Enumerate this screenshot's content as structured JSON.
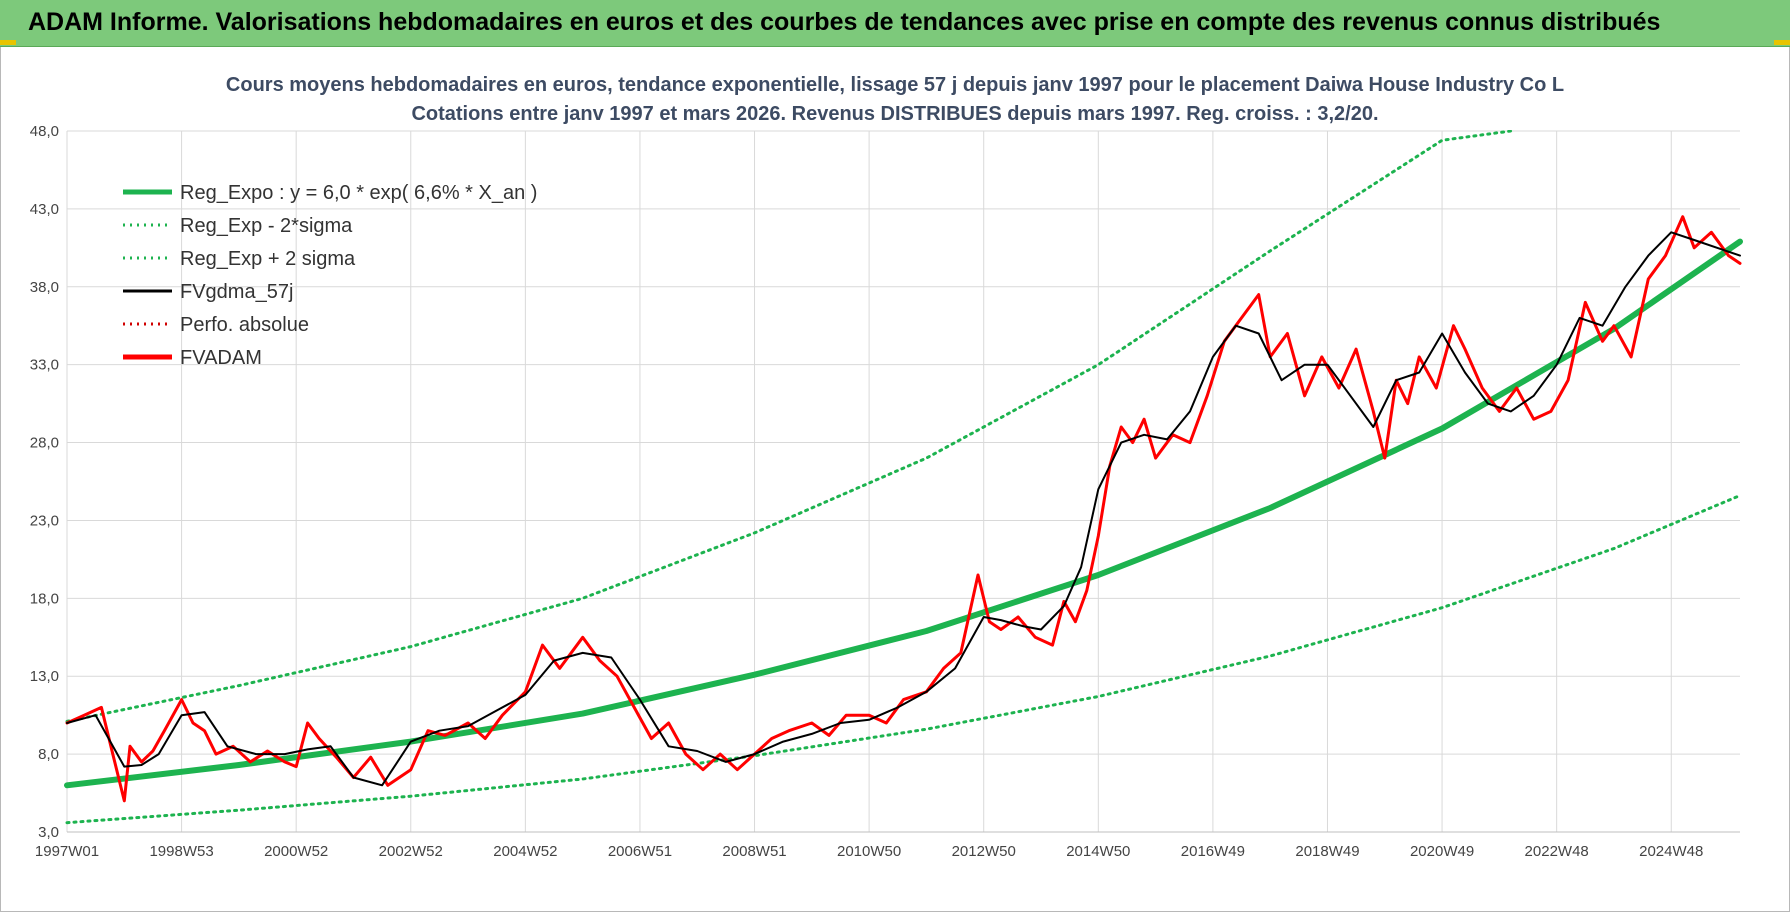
{
  "header": {
    "title": "ADAM Informe. Valorisations hebdomadaires en euros et des courbes de tendances avec prise en compte des revenus connus distribués"
  },
  "chart_data": {
    "type": "line",
    "title": "Cours moyens hebdomadaires en euros, tendance exponentielle, lissage 57 j depuis janv 1997 pour le placement Daiwa House Industry Co L",
    "subtitle": "Cotations entre janv 1997 et mars 2026. Revenus DISTRIBUES depuis mars 1997. Reg. croiss. : 3,2/20.",
    "xlabel": "",
    "ylabel": "",
    "ylim": [
      3.0,
      48.0
    ],
    "yticks": [
      "48,0",
      "43,0",
      "38,0",
      "33,0",
      "28,0",
      "23,0",
      "18,0",
      "13,0",
      "8,0",
      "3,0"
    ],
    "xlim": [
      1997.0,
      2026.2
    ],
    "xticks": [
      {
        "label": "1997W01",
        "x": 1997.0
      },
      {
        "label": "1998W53",
        "x": 1999.0
      },
      {
        "label": "2000W52",
        "x": 2001.0
      },
      {
        "label": "2002W52",
        "x": 2003.0
      },
      {
        "label": "2004W52",
        "x": 2005.0
      },
      {
        "label": "2006W51",
        "x": 2007.0
      },
      {
        "label": "2008W51",
        "x": 2009.0
      },
      {
        "label": "2010W50",
        "x": 2011.0
      },
      {
        "label": "2012W50",
        "x": 2013.0
      },
      {
        "label": "2014W50",
        "x": 2015.0
      },
      {
        "label": "2016W49",
        "x": 2017.0
      },
      {
        "label": "2018W49",
        "x": 2019.0
      },
      {
        "label": "2020W49",
        "x": 2021.0
      },
      {
        "label": "2022W48",
        "x": 2023.0
      },
      {
        "label": "2024W48",
        "x": 2025.0
      }
    ],
    "grid": true,
    "legend_position": "top-left",
    "series": [
      {
        "name": "Reg_Expo : y = 6,0 * exp( 6,6% *  X_an )",
        "color": "#1db34f",
        "style": "solid-thick",
        "x": [
          1997.0,
          2000.0,
          2003.0,
          2006.0,
          2009.0,
          2012.0,
          2015.0,
          2018.0,
          2021.0,
          2024.0,
          2026.2
        ],
        "values": [
          6.0,
          7.3,
          8.8,
          10.6,
          13.1,
          15.9,
          19.5,
          23.8,
          28.9,
          35.3,
          40.9
        ]
      },
      {
        "name": "Reg_Exp - 2*sigma",
        "color": "#1db34f",
        "style": "dotted",
        "x": [
          1997.0,
          2000.0,
          2003.0,
          2006.0,
          2009.0,
          2012.0,
          2015.0,
          2018.0,
          2021.0,
          2024.0,
          2026.2
        ],
        "values": [
          3.6,
          4.4,
          5.3,
          6.4,
          7.9,
          9.6,
          11.7,
          14.3,
          17.4,
          21.2,
          24.6
        ]
      },
      {
        "name": "Reg_Exp + 2 sigma",
        "color": "#1db34f",
        "style": "dotted",
        "x": [
          1997.0,
          2000.0,
          2003.0,
          2006.0,
          2009.0,
          2012.0,
          2015.0,
          2018.0,
          2021.0,
          2022.2
        ],
        "values": [
          10.1,
          12.4,
          14.9,
          18.0,
          22.2,
          27.0,
          33.0,
          40.3,
          47.4,
          48.0
        ]
      },
      {
        "name": "FVgdma_57j",
        "color": "#000000",
        "style": "solid",
        "x": [
          1997.0,
          1997.5,
          1998.0,
          1998.3,
          1998.6,
          1999.0,
          1999.4,
          1999.8,
          2000.3,
          2000.8,
          2001.2,
          2001.6,
          2002.0,
          2002.5,
          2003.0,
          2003.5,
          2004.0,
          2004.5,
          2005.0,
          2005.5,
          2006.0,
          2006.5,
          2007.0,
          2007.5,
          2008.0,
          2008.5,
          2009.0,
          2009.5,
          2010.0,
          2010.5,
          2011.0,
          2011.5,
          2012.0,
          2012.5,
          2013.0,
          2013.3,
          2013.7,
          2014.0,
          2014.4,
          2014.7,
          2015.0,
          2015.4,
          2015.8,
          2016.2,
          2016.6,
          2017.0,
          2017.4,
          2017.8,
          2018.2,
          2018.6,
          2019.0,
          2019.4,
          2019.8,
          2020.2,
          2020.6,
          2021.0,
          2021.4,
          2021.8,
          2022.2,
          2022.6,
          2023.0,
          2023.4,
          2023.8,
          2024.2,
          2024.6,
          2025.0,
          2025.4,
          2025.8,
          2026.2
        ],
        "values": [
          10.0,
          10.5,
          7.2,
          7.3,
          8.0,
          10.5,
          10.7,
          8.5,
          8.0,
          8.0,
          8.3,
          8.5,
          6.5,
          6.0,
          8.8,
          9.5,
          9.8,
          10.8,
          11.8,
          14.0,
          14.5,
          14.2,
          11.5,
          8.5,
          8.2,
          7.5,
          8.0,
          8.8,
          9.3,
          10.0,
          10.2,
          11.0,
          12.0,
          13.5,
          16.8,
          16.6,
          16.2,
          16.0,
          17.5,
          20.0,
          25.0,
          28.0,
          28.5,
          28.2,
          30.0,
          33.5,
          35.5,
          35.0,
          32.0,
          33.0,
          33.0,
          31.0,
          29.0,
          32.0,
          32.5,
          35.0,
          32.5,
          30.5,
          30.0,
          31.0,
          33.0,
          36.0,
          35.5,
          38.0,
          40.0,
          41.5,
          41.0,
          40.5,
          40.0
        ]
      },
      {
        "name": "Perfo. absolue",
        "color": "#d00000",
        "style": "dotted",
        "x": [],
        "values": []
      },
      {
        "name": "FVADAM",
        "color": "#ff0000",
        "style": "solid-thick",
        "x": [
          1997.0,
          1997.3,
          1997.6,
          1997.8,
          1998.0,
          1998.1,
          1998.3,
          1998.5,
          1998.7,
          1999.0,
          1999.2,
          1999.4,
          1999.6,
          1999.9,
          2000.2,
          2000.5,
          2000.8,
          2001.0,
          2001.2,
          2001.4,
          2001.7,
          2002.0,
          2002.3,
          2002.6,
          2003.0,
          2003.3,
          2003.6,
          2004.0,
          2004.3,
          2004.6,
          2005.0,
          2005.3,
          2005.6,
          2006.0,
          2006.3,
          2006.6,
          2006.9,
          2007.2,
          2007.5,
          2007.8,
          2008.1,
          2008.4,
          2008.7,
          2009.0,
          2009.3,
          2009.6,
          2010.0,
          2010.3,
          2010.6,
          2011.0,
          2011.3,
          2011.6,
          2012.0,
          2012.3,
          2012.6,
          2012.9,
          2013.1,
          2013.3,
          2013.6,
          2013.9,
          2014.2,
          2014.4,
          2014.6,
          2014.8,
          2015.0,
          2015.2,
          2015.4,
          2015.6,
          2015.8,
          2016.0,
          2016.3,
          2016.6,
          2016.9,
          2017.2,
          2017.5,
          2017.8,
          2018.0,
          2018.3,
          2018.6,
          2018.9,
          2019.2,
          2019.5,
          2019.8,
          2020.0,
          2020.2,
          2020.4,
          2020.6,
          2020.9,
          2021.2,
          2021.4,
          2021.7,
          2022.0,
          2022.3,
          2022.6,
          2022.9,
          2023.2,
          2023.5,
          2023.8,
          2024.0,
          2024.3,
          2024.6,
          2024.9,
          2025.2,
          2025.4,
          2025.7,
          2026.0,
          2026.2
        ],
        "values": [
          10.0,
          10.5,
          11.0,
          8.0,
          5.0,
          8.5,
          7.5,
          8.2,
          9.5,
          11.5,
          10.0,
          9.5,
          8.0,
          8.5,
          7.5,
          8.2,
          7.5,
          7.2,
          10.0,
          9.0,
          7.8,
          6.5,
          7.8,
          6.0,
          7.0,
          9.5,
          9.2,
          10.0,
          9.0,
          10.5,
          12.0,
          15.0,
          13.5,
          15.5,
          14.0,
          13.0,
          11.0,
          9.0,
          10.0,
          8.0,
          7.0,
          8.0,
          7.0,
          8.0,
          9.0,
          9.5,
          10.0,
          9.2,
          10.5,
          10.5,
          10.0,
          11.5,
          12.0,
          13.5,
          14.5,
          19.5,
          16.5,
          16.0,
          16.8,
          15.5,
          15.0,
          17.8,
          16.5,
          18.5,
          22.0,
          26.5,
          29.0,
          28.0,
          29.5,
          27.0,
          28.5,
          28.0,
          31.0,
          34.5,
          36.0,
          37.5,
          33.5,
          35.0,
          31.0,
          33.5,
          31.5,
          34.0,
          30.0,
          27.0,
          32.0,
          30.5,
          33.5,
          31.5,
          35.5,
          34.0,
          31.5,
          30.0,
          31.5,
          29.5,
          30.0,
          32.0,
          37.0,
          34.5,
          35.5,
          33.5,
          38.5,
          40.0,
          42.5,
          40.5,
          41.5,
          40.0,
          39.5
        ]
      }
    ]
  }
}
